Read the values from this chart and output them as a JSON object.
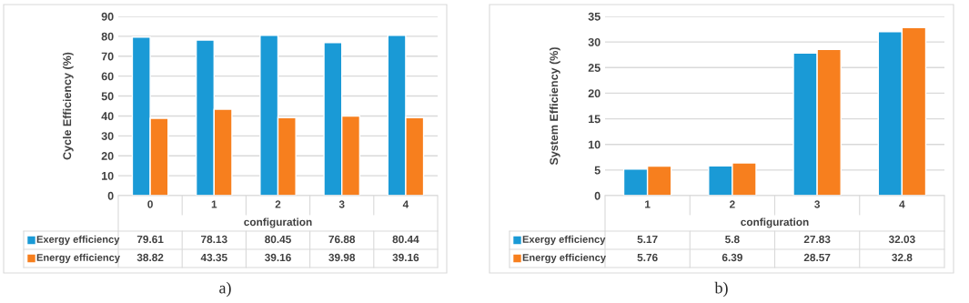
{
  "chart_data": [
    {
      "type": "bar",
      "ylabel": "Cycle Efficiency (%)",
      "xlabel": "configuration",
      "categories": [
        "0",
        "1",
        "2",
        "3",
        "4"
      ],
      "series": [
        {
          "name": "Exergy efficiency",
          "color": "#1a9ad6",
          "values": [
            79.61,
            78.13,
            80.45,
            76.88,
            80.44
          ]
        },
        {
          "name": "Energy efficiency",
          "color": "#f77f1e",
          "values": [
            38.82,
            43.35,
            39.16,
            39.98,
            39.16
          ]
        }
      ],
      "ylim": [
        0,
        90
      ],
      "yticks": [
        0,
        10,
        20,
        30,
        40,
        50,
        60,
        70,
        80,
        90
      ],
      "grid": "y",
      "legend": "bottom",
      "data_labels": true,
      "annotations": [
        "a)"
      ]
    },
    {
      "type": "bar",
      "ylabel": "System Efficiency (%)",
      "xlabel": "configuration",
      "categories": [
        "1",
        "2",
        "3",
        "4"
      ],
      "series": [
        {
          "name": "Exergy efficiency",
          "color": "#1a9ad6",
          "values": [
            5.17,
            5.8,
            27.83,
            32.03
          ]
        },
        {
          "name": "Energy efficiency",
          "color": "#f77f1e",
          "values": [
            5.76,
            6.39,
            28.57,
            32.8
          ]
        }
      ],
      "ylim": [
        0,
        35
      ],
      "yticks": [
        0,
        5,
        10,
        15,
        20,
        25,
        30,
        35
      ],
      "grid": "y",
      "legend": "bottom",
      "data_labels": true,
      "annotations": [
        "b)"
      ]
    }
  ]
}
